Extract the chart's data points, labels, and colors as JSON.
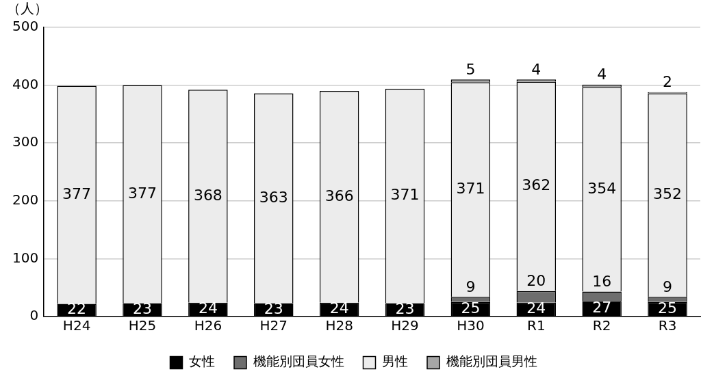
{
  "chart_data": {
    "type": "bar",
    "stacked": true,
    "ylabel": "（人）",
    "categories": [
      "H24",
      "H25",
      "H26",
      "H27",
      "H28",
      "H29",
      "H30",
      "R1",
      "R2",
      "R3"
    ],
    "series": [
      {
        "name": "女性",
        "color": "#000000",
        "values": [
          22,
          23,
          24,
          23,
          24,
          23,
          25,
          24,
          27,
          25
        ]
      },
      {
        "name": "機能別団員女性",
        "color": "#6e6e6e",
        "values": [
          null,
          null,
          null,
          null,
          null,
          null,
          9,
          20,
          16,
          9
        ]
      },
      {
        "name": "男性",
        "color": "#ececec",
        "values": [
          377,
          377,
          368,
          363,
          366,
          371,
          371,
          362,
          354,
          352
        ]
      },
      {
        "name": "機能別団員男性",
        "color": "#a6a6a6",
        "values": [
          null,
          null,
          null,
          null,
          null,
          null,
          5,
          4,
          4,
          2
        ]
      }
    ],
    "ylim": [
      0,
      500
    ],
    "yticks": [
      0,
      100,
      200,
      300,
      400,
      500
    ],
    "grid": "y",
    "legend": "bottom",
    "data_labels": true
  }
}
